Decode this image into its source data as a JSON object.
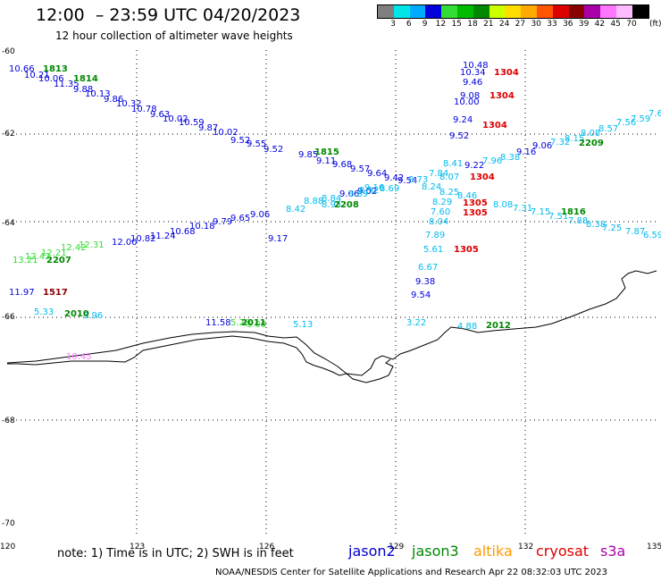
{
  "header": {
    "title": "12:00  – 23:59 UTC 04/20/2023",
    "subtitle": "12 hour collection of altimeter wave heights"
  },
  "color_scale": {
    "unit_label": "(ft)",
    "swatches": [
      {
        "color": "#7f7f7f",
        "label": "3"
      },
      {
        "color": "#00e5e5",
        "label": "6"
      },
      {
        "color": "#00aaff",
        "label": "9"
      },
      {
        "color": "#0000dd",
        "label": "12"
      },
      {
        "color": "#33dd33",
        "label": "15"
      },
      {
        "color": "#00bb00",
        "label": "18"
      },
      {
        "color": "#008800",
        "label": "21"
      },
      {
        "color": "#ccff00",
        "label": "24"
      },
      {
        "color": "#ffdd00",
        "label": "27"
      },
      {
        "color": "#ffaa00",
        "label": "30"
      },
      {
        "color": "#ff5500",
        "label": "33"
      },
      {
        "color": "#dd0000",
        "label": "36"
      },
      {
        "color": "#880000",
        "label": "39"
      },
      {
        "color": "#aa00aa",
        "label": "42"
      },
      {
        "color": "#ff77ff",
        "label": "45"
      },
      {
        "color": "#ffbbff",
        "label": "70"
      },
      {
        "color": "#000000",
        "label": ""
      }
    ]
  },
  "axes": {
    "lat_labels": [
      "-60",
      "-62",
      "-64",
      "-66",
      "-68",
      "-70"
    ],
    "lon_labels": [
      "120",
      "123",
      "126",
      "129",
      "132",
      "135"
    ]
  },
  "observations": {
    "times": [
      {
        "text": "1813",
        "color": "#008800"
      },
      {
        "text": "1814",
        "color": "#008800"
      },
      {
        "text": "1815",
        "color": "#008800"
      },
      {
        "text": "2208",
        "color": "#008800"
      },
      {
        "text": "2207",
        "color": "#008800"
      },
      {
        "text": "1517",
        "color": "#880000"
      },
      {
        "text": "2010",
        "color": "#008800"
      },
      {
        "text": "2011",
        "color": "#008800"
      },
      {
        "text": "2012",
        "color": "#008800"
      },
      {
        "text": "1304",
        "color": "#dd0000"
      },
      {
        "text": "1304",
        "color": "#dd0000"
      },
      {
        "text": "1304",
        "color": "#dd0000"
      },
      {
        "text": "1304",
        "color": "#dd0000"
      },
      {
        "text": "1305",
        "color": "#dd0000"
      },
      {
        "text": "1305",
        "color": "#dd0000"
      },
      {
        "text": "1305",
        "color": "#dd0000"
      },
      {
        "text": "2209",
        "color": "#008800"
      },
      {
        "text": "1816",
        "color": "#008800"
      }
    ],
    "heights": [
      {
        "text": "10.66",
        "color": "#0000dd"
      },
      {
        "text": "10.21",
        "color": "#0000dd"
      },
      {
        "text": "10.06",
        "color": "#0000dd"
      },
      {
        "text": "11.35",
        "color": "#0000dd"
      },
      {
        "text": "9.88",
        "color": "#0000dd"
      },
      {
        "text": "10.13",
        "color": "#0000dd"
      },
      {
        "text": "9.86",
        "color": "#0000dd"
      },
      {
        "text": "10.32",
        "color": "#0000dd"
      },
      {
        "text": "10.78",
        "color": "#0000dd"
      },
      {
        "text": "9.63",
        "color": "#0000dd"
      },
      {
        "text": "10.02",
        "color": "#0000dd"
      },
      {
        "text": "10.59",
        "color": "#0000dd"
      },
      {
        "text": "9.87",
        "color": "#0000dd"
      },
      {
        "text": "10.02",
        "color": "#0000dd"
      },
      {
        "text": "9.52",
        "color": "#0000dd"
      },
      {
        "text": "9.55",
        "color": "#0000dd"
      },
      {
        "text": "9.52",
        "color": "#0000dd"
      },
      {
        "text": "9.85",
        "color": "#0000dd"
      },
      {
        "text": "9.11",
        "color": "#0000dd"
      },
      {
        "text": "9.68",
        "color": "#0000dd"
      },
      {
        "text": "9.57",
        "color": "#0000dd"
      },
      {
        "text": "9.64",
        "color": "#0000dd"
      },
      {
        "text": "9.42",
        "color": "#0000dd"
      },
      {
        "text": "9.54",
        "color": "#0000dd"
      },
      {
        "text": "9.22",
        "color": "#0000dd"
      },
      {
        "text": "10.48",
        "color": "#0000dd"
      },
      {
        "text": "10.34",
        "color": "#0000dd"
      },
      {
        "text": "9.46",
        "color": "#0000dd"
      },
      {
        "text": "9.08",
        "color": "#0000dd"
      },
      {
        "text": "10.00",
        "color": "#0000dd"
      },
      {
        "text": "9.24",
        "color": "#0000dd"
      },
      {
        "text": "9.52",
        "color": "#0000dd"
      },
      {
        "text": "9.16",
        "color": "#0000dd"
      },
      {
        "text": "9.06",
        "color": "#0000dd"
      },
      {
        "text": "9.02",
        "color": "#0000dd"
      },
      {
        "text": "9.06",
        "color": "#0000dd"
      },
      {
        "text": "9.17",
        "color": "#0000dd"
      },
      {
        "text": "9.06",
        "color": "#0000dd"
      },
      {
        "text": "9.65",
        "color": "#0000dd"
      },
      {
        "text": "9.79",
        "color": "#0000dd"
      },
      {
        "text": "10.18",
        "color": "#0000dd"
      },
      {
        "text": "10.68",
        "color": "#0000dd"
      },
      {
        "text": "11.24",
        "color": "#0000dd"
      },
      {
        "text": "10.82",
        "color": "#0000dd"
      },
      {
        "text": "12.00",
        "color": "#0000dd"
      },
      {
        "text": "11.97",
        "color": "#0000dd"
      },
      {
        "text": "11.58",
        "color": "#0000dd"
      },
      {
        "text": "9.38",
        "color": "#0000dd"
      },
      {
        "text": "9.54",
        "color": "#0000dd"
      },
      {
        "text": "7.59",
        "color": "#00bbee"
      },
      {
        "text": "7.6",
        "color": "#00bbee"
      },
      {
        "text": "7.56",
        "color": "#00bbee"
      },
      {
        "text": "8.57",
        "color": "#00bbee"
      },
      {
        "text": "8.08",
        "color": "#00bbee"
      },
      {
        "text": "8.15",
        "color": "#00bbee"
      },
      {
        "text": "7.32",
        "color": "#00bbee"
      },
      {
        "text": "8.38",
        "color": "#00bbee"
      },
      {
        "text": "7.96",
        "color": "#00bbee"
      },
      {
        "text": "8.41",
        "color": "#00bbee"
      },
      {
        "text": "7.84",
        "color": "#00bbee"
      },
      {
        "text": "8.07",
        "color": "#00bbee"
      },
      {
        "text": "8.73",
        "color": "#00bbee"
      },
      {
        "text": "8.24",
        "color": "#00bbee"
      },
      {
        "text": "8.69",
        "color": "#00bbee"
      },
      {
        "text": "8.25",
        "color": "#00bbee"
      },
      {
        "text": "8.46",
        "color": "#00bbee"
      },
      {
        "text": "8.29",
        "color": "#00bbee"
      },
      {
        "text": "7.60",
        "color": "#00bbee"
      },
      {
        "text": "8.04",
        "color": "#00bbee"
      },
      {
        "text": "8.08",
        "color": "#00bbee"
      },
      {
        "text": "7.31",
        "color": "#00bbee"
      },
      {
        "text": "7.15",
        "color": "#00bbee"
      },
      {
        "text": "7.51",
        "color": "#00bbee"
      },
      {
        "text": "7.88",
        "color": "#00bbee"
      },
      {
        "text": "8.38",
        "color": "#00bbee"
      },
      {
        "text": "7.25",
        "color": "#00bbee"
      },
      {
        "text": "7.87",
        "color": "#00bbee"
      },
      {
        "text": "6.59",
        "color": "#00bbee"
      },
      {
        "text": "8.88",
        "color": "#00bbee"
      },
      {
        "text": "8.95",
        "color": "#00bbee"
      },
      {
        "text": "8.42",
        "color": "#00bbee"
      },
      {
        "text": "7.89",
        "color": "#00bbee"
      },
      {
        "text": "5.61",
        "color": "#00bbee"
      },
      {
        "text": "6.67",
        "color": "#00bbee"
      },
      {
        "text": "5.33",
        "color": "#00bbee"
      },
      {
        "text": "5.96",
        "color": "#00bbee"
      },
      {
        "text": "5.13",
        "color": "#00bbee"
      },
      {
        "text": "3.22",
        "color": "#00bbee"
      },
      {
        "text": "4.88",
        "color": "#00bbee"
      },
      {
        "text": "8.84",
        "color": "#00bbee"
      },
      {
        "text": "8.89",
        "color": "#00bbee"
      },
      {
        "text": "8.92",
        "color": "#00bbee"
      },
      {
        "text": "9.16",
        "color": "#00bbee"
      },
      {
        "text": "13.21",
        "color": "#33dd33"
      },
      {
        "text": "12.42",
        "color": "#33dd33"
      },
      {
        "text": "12.21",
        "color": "#33dd33"
      },
      {
        "text": "12.42",
        "color": "#33dd33"
      },
      {
        "text": "12.31",
        "color": "#33dd33"
      },
      {
        "text": "5.26",
        "color": "#33dd33"
      },
      {
        "text": "5.00",
        "color": "#33dd33"
      },
      {
        "text": "10.45",
        "color": "#ff77ff"
      }
    ]
  },
  "footer": {
    "note": "note:  1) Time is in UTC;  2) SWH is in feet",
    "legend": [
      {
        "text": "jason2",
        "color": "#0000cc"
      },
      {
        "text": "jason3",
        "color": "#008800"
      },
      {
        "text": "altika",
        "color": "#ff9900"
      },
      {
        "text": "cryosat",
        "color": "#dd0000"
      },
      {
        "text": "s3a",
        "color": "#aa00aa"
      }
    ],
    "credit": "NOAA/NESDIS Center for Satellite Applications and Research    Apr 22 08:32:03 UTC 2023"
  }
}
